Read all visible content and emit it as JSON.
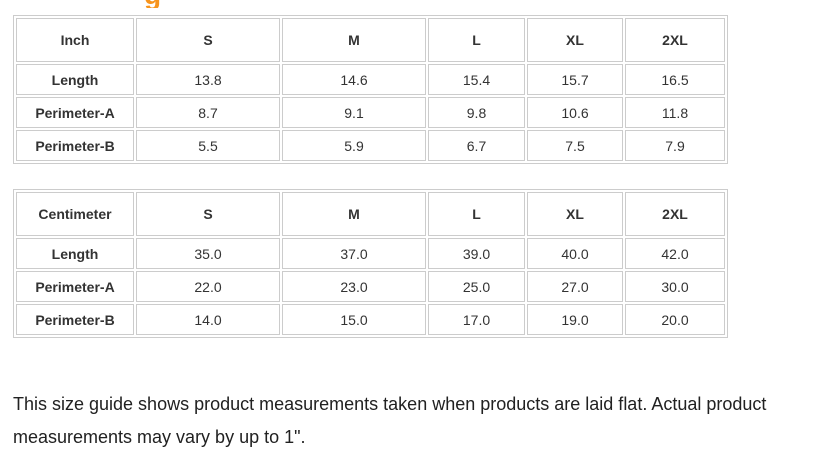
{
  "header": {
    "fragment_glyph": "g",
    "accent_color": "#f7941d"
  },
  "style": {
    "table_border_color": "#cccccc",
    "table_text_color": "#333333",
    "note_text_color": "#212121"
  },
  "tables": [
    {
      "unit_label": "Inch",
      "size_headers": [
        "S",
        "M",
        "L",
        "XL",
        "2XL"
      ],
      "rows": [
        {
          "label": "Length",
          "values": [
            "13.8",
            "14.6",
            "15.4",
            "15.7",
            "16.5"
          ]
        },
        {
          "label": "Perimeter-A",
          "values": [
            "8.7",
            "9.1",
            "9.8",
            "10.6",
            "11.8"
          ]
        },
        {
          "label": "Perimeter-B",
          "values": [
            "5.5",
            "5.9",
            "6.7",
            "7.5",
            "7.9"
          ]
        }
      ]
    },
    {
      "unit_label": "Centimeter",
      "size_headers": [
        "S",
        "M",
        "L",
        "XL",
        "2XL"
      ],
      "rows": [
        {
          "label": "Length",
          "values": [
            "35.0",
            "37.0",
            "39.0",
            "40.0",
            "42.0"
          ]
        },
        {
          "label": "Perimeter-A",
          "values": [
            "22.0",
            "23.0",
            "25.0",
            "27.0",
            "30.0"
          ]
        },
        {
          "label": "Perimeter-B",
          "values": [
            "14.0",
            "15.0",
            "17.0",
            "19.0",
            "20.0"
          ]
        }
      ]
    }
  ],
  "note": {
    "text": "This size guide shows product measurements taken when products are laid flat. Actual product measurements may vary by up to 1\"."
  }
}
